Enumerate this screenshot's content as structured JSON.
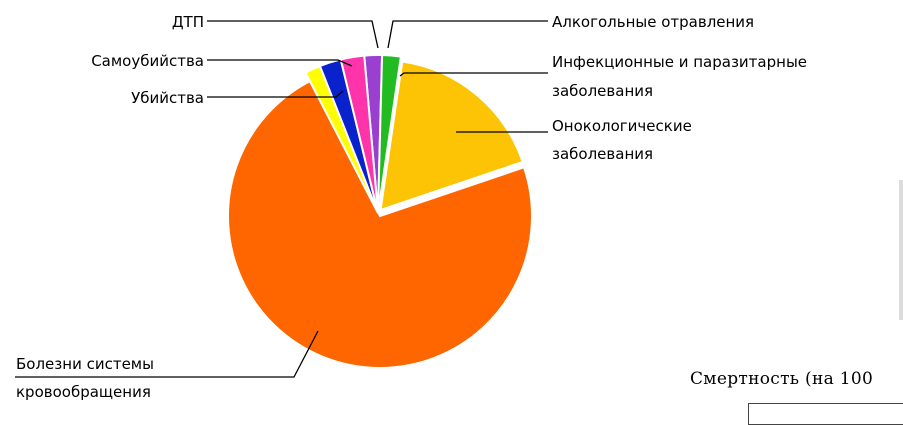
{
  "chart_data": {
    "type": "pie",
    "slices": [
      {
        "label": "Алкогольные отравления",
        "value": 1.8,
        "color": "#9a3fd0"
      },
      {
        "label": "Инфекционные и паразитарные заболевания",
        "value": 1.9,
        "color": "#22bb22"
      },
      {
        "label": "Онокологические заболевания",
        "value": 17.5,
        "color": "#fcc405"
      },
      {
        "label": "Болезни системы кровообращения",
        "value": 72.6,
        "color": "#ff6600"
      },
      {
        "label": "Убийства",
        "value": 1.6,
        "color": "#ffff00"
      },
      {
        "label": "Самоубийства",
        "value": 2.2,
        "color": "#0a22cc"
      },
      {
        "label": "ДТП",
        "value": 2.4,
        "color": "#ff33aa"
      }
    ]
  },
  "labels": {
    "dtp": "ДТП",
    "suicide": "Самоубийства",
    "murder": "Убийства",
    "alcohol": "Алкогольные отравления",
    "infect_1": "Инфекционные и паразитарные",
    "infect_2": "заболевания",
    "onco_1": "Онокологические",
    "onco_2": "заболевания",
    "cardio_1": "Болезни системы",
    "cardio_2": "кровообращения"
  },
  "caption": "Смертность (на 100"
}
